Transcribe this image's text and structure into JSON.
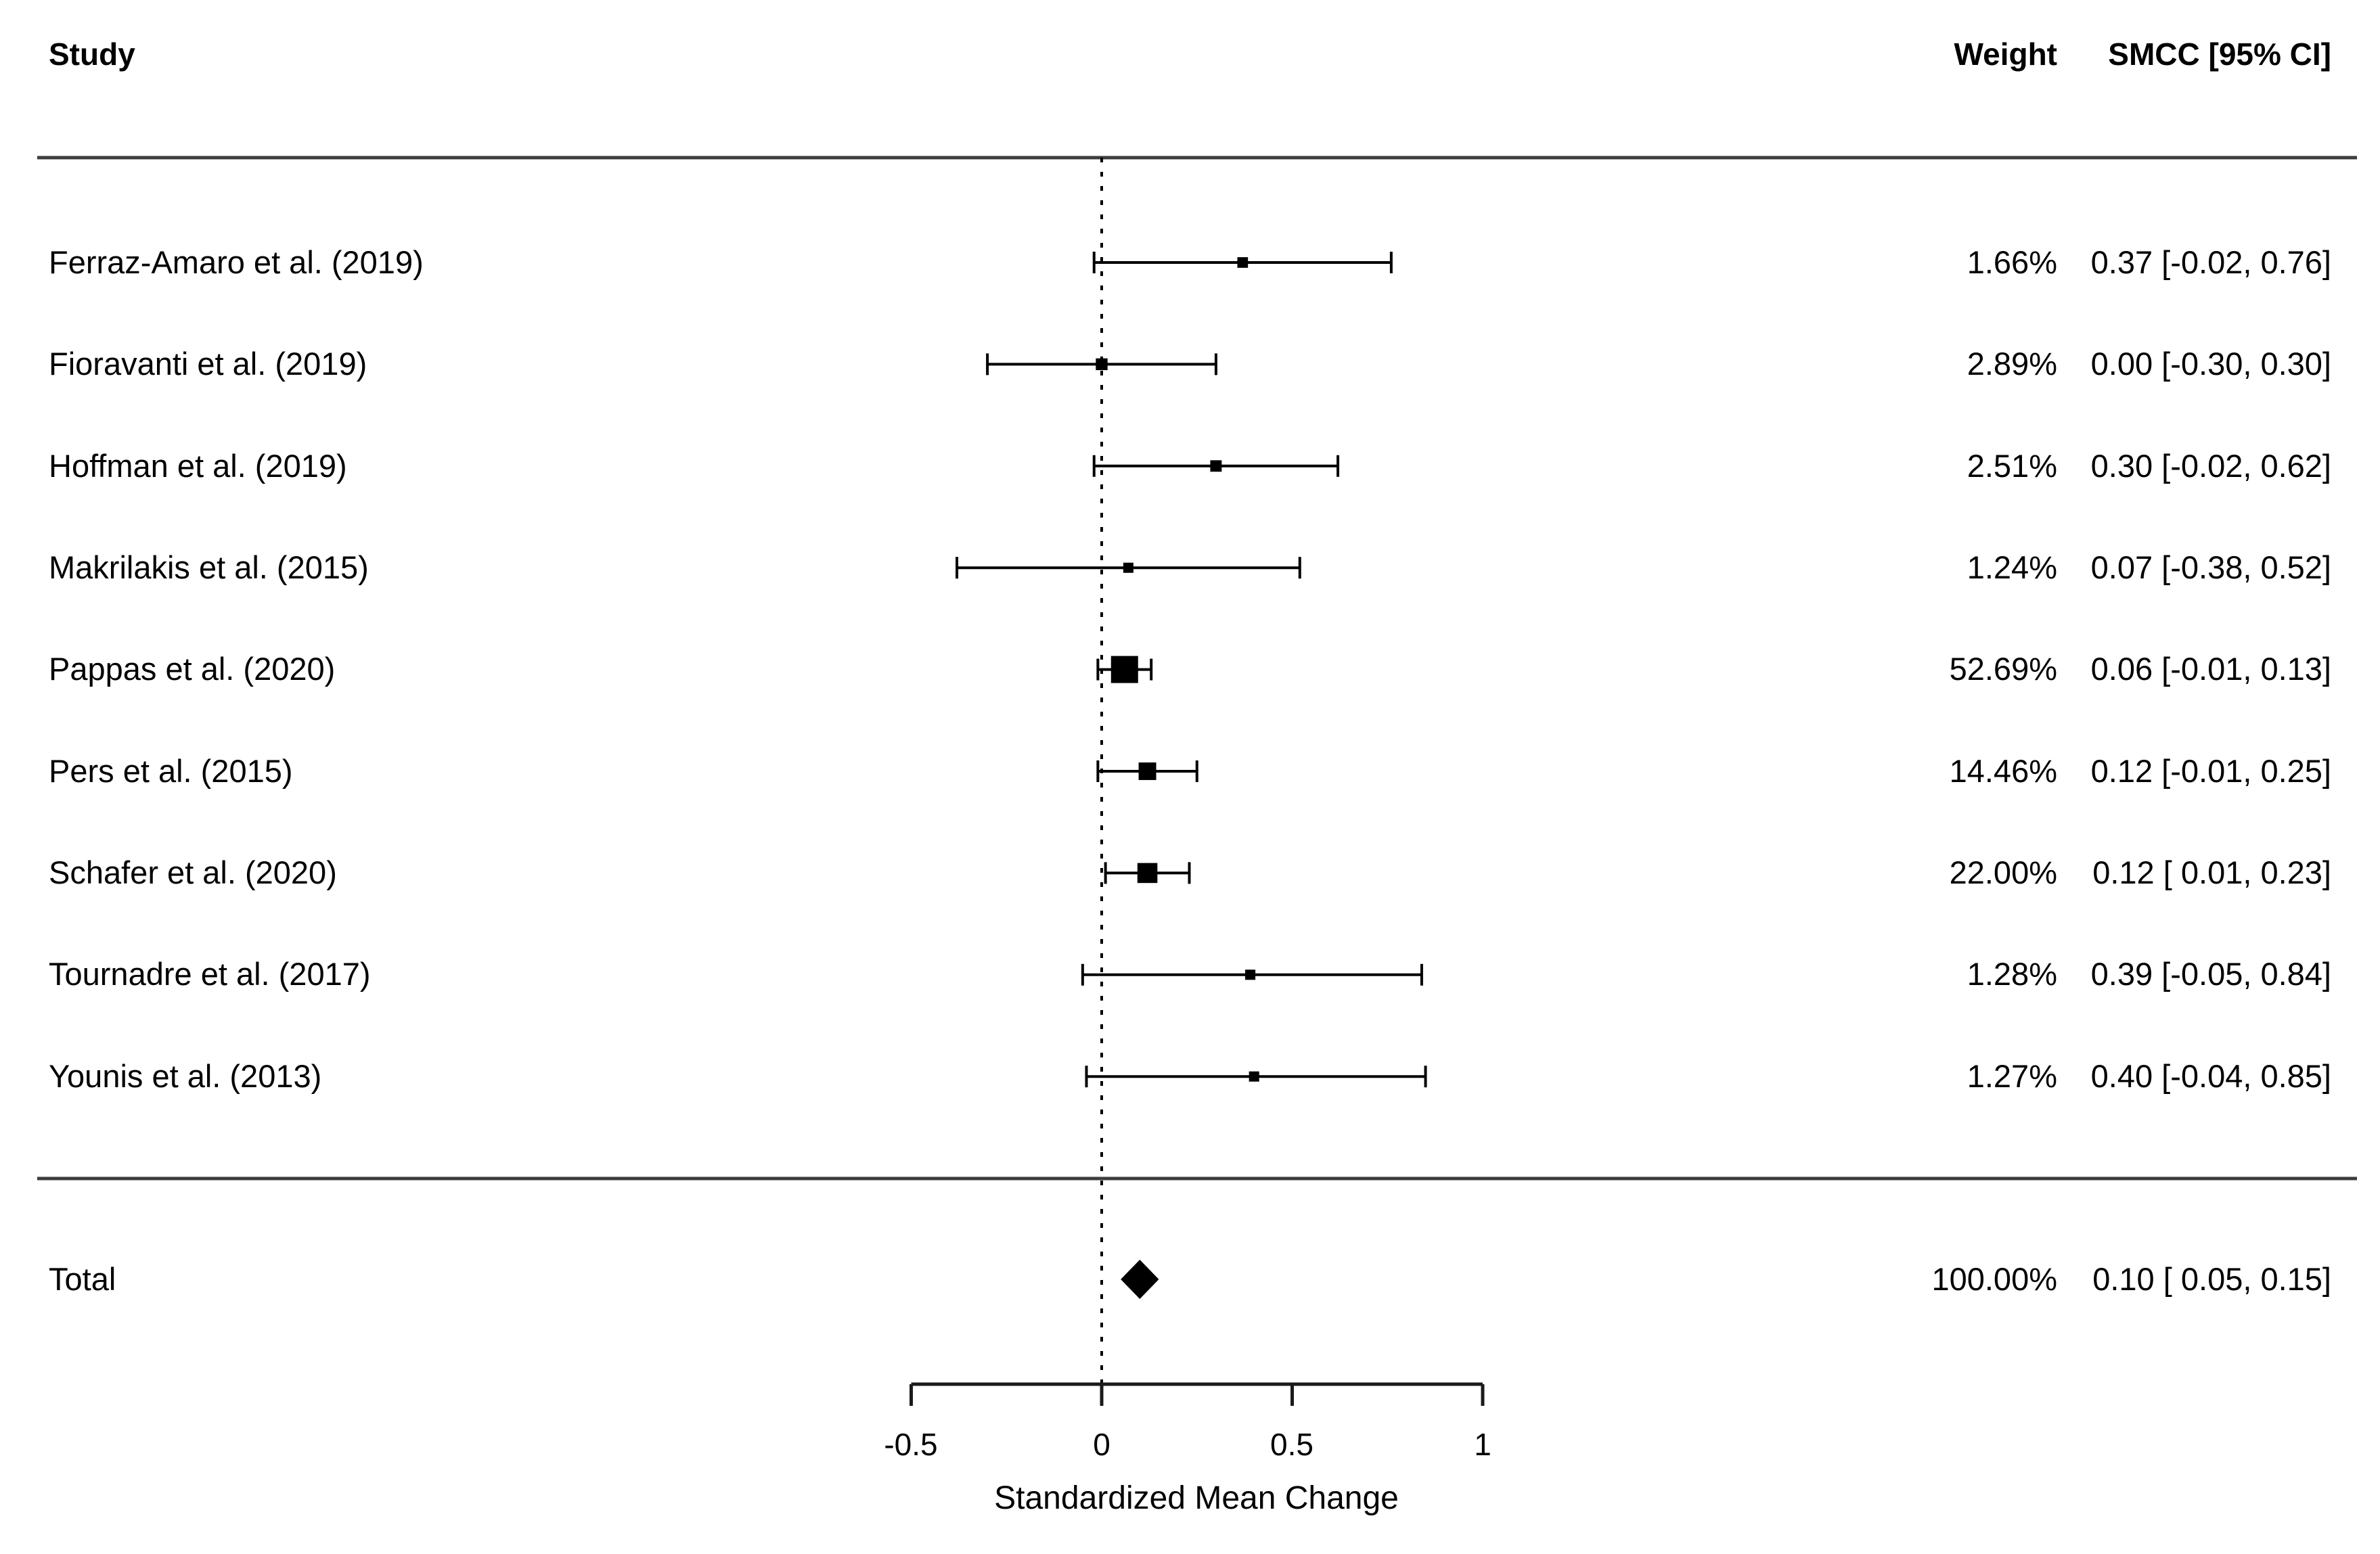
{
  "chart_data": {
    "type": "forest",
    "title": "",
    "xlabel": "Standardized Mean Change",
    "x_tick_labels": [
      "-0.5",
      "0",
      "0.5",
      "1"
    ],
    "x_tick_values": [
      -0.5,
      0,
      0.5,
      1
    ],
    "xlim": [
      -0.5,
      1.0
    ],
    "reference_line_x": 0,
    "columns": {
      "study": "Study",
      "weight": "Weight",
      "effect": "SMCC [95% CI]"
    },
    "studies": [
      {
        "name": "Ferraz-Amaro et al. (2019)",
        "weight_pct": 1.66,
        "weight_label": "1.66%",
        "est": 0.37,
        "ci_low": -0.02,
        "ci_high": 0.76,
        "effect_label": "0.37 [-0.02, 0.76]"
      },
      {
        "name": "Fioravanti et al. (2019)",
        "weight_pct": 2.89,
        "weight_label": "2.89%",
        "est": 0.0,
        "ci_low": -0.3,
        "ci_high": 0.3,
        "effect_label": "0.00 [-0.30, 0.30]"
      },
      {
        "name": "Hoffman et al. (2019)",
        "weight_pct": 2.51,
        "weight_label": "2.51%",
        "est": 0.3,
        "ci_low": -0.02,
        "ci_high": 0.62,
        "effect_label": "0.30 [-0.02, 0.62]"
      },
      {
        "name": "Makrilakis et al. (2015)",
        "weight_pct": 1.24,
        "weight_label": "1.24%",
        "est": 0.07,
        "ci_low": -0.38,
        "ci_high": 0.52,
        "effect_label": "0.07 [-0.38, 0.52]"
      },
      {
        "name": "Pappas et al. (2020)",
        "weight_pct": 52.69,
        "weight_label": "52.69%",
        "est": 0.06,
        "ci_low": -0.01,
        "ci_high": 0.13,
        "effect_label": "0.06 [-0.01, 0.13]"
      },
      {
        "name": "Pers et al. (2015)",
        "weight_pct": 14.46,
        "weight_label": "14.46%",
        "est": 0.12,
        "ci_low": -0.01,
        "ci_high": 0.25,
        "effect_label": "0.12 [-0.01, 0.25]"
      },
      {
        "name": "Schafer et al. (2020)",
        "weight_pct": 22.0,
        "weight_label": "22.00%",
        "est": 0.12,
        "ci_low": 0.01,
        "ci_high": 0.23,
        "effect_label": "0.12 [ 0.01, 0.23]"
      },
      {
        "name": "Tournadre et al. (2017)",
        "weight_pct": 1.28,
        "weight_label": "1.28%",
        "est": 0.39,
        "ci_low": -0.05,
        "ci_high": 0.84,
        "effect_label": "0.39 [-0.05, 0.84]"
      },
      {
        "name": "Younis et al. (2013)",
        "weight_pct": 1.27,
        "weight_label": "1.27%",
        "est": 0.4,
        "ci_low": -0.04,
        "ci_high": 0.85,
        "effect_label": "0.40 [-0.04, 0.85]"
      }
    ],
    "total": {
      "name": "Total",
      "weight_pct": 100.0,
      "weight_label": "100.00%",
      "est": 0.1,
      "ci_low": 0.05,
      "ci_high": 0.15,
      "effect_label": "0.10 [ 0.05, 0.15]"
    },
    "colors": {
      "marker": "#000000",
      "rule": "#3d3d3d",
      "axis": "#1a1a1a",
      "text": "#000000"
    },
    "legend_position": "none",
    "grid": false
  }
}
